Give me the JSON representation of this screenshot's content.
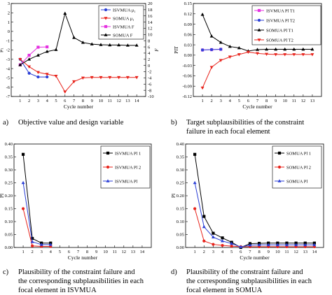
{
  "captions": {
    "a": {
      "tag": "a)",
      "text": "Objective value and design variable"
    },
    "b": {
      "tag": "b)",
      "text": "Target subplausibilities of the constraint\nfailure in each focal element"
    },
    "c": {
      "tag": "c)",
      "text": "Plausibility of the constraint failure and\nthe corresponding subplausibilities in each\nfocal element in ISVMUA"
    },
    "d": {
      "tag": "d)",
      "text": "Plausibility of the constraint failure and\nthe corresponding subplausibilities in each\nfocal element in SOMUA"
    }
  },
  "chart_data": [
    {
      "id": "a",
      "type": "line",
      "xlabel": "Cycle number",
      "ylabel": "μ₁",
      "y2label": "F",
      "xlim": [
        0,
        15
      ],
      "xticks": [
        1,
        2,
        3,
        4,
        5,
        6,
        7,
        8,
        9,
        10,
        11,
        12,
        13,
        14
      ],
      "ylim": [
        -7,
        3
      ],
      "yticks": [
        3,
        2,
        1,
        0,
        -1,
        -2,
        -3,
        -4,
        -5,
        -6,
        -7
      ],
      "y2lim": [
        -10,
        20
      ],
      "y2ticks": [
        20,
        18,
        16,
        14,
        12,
        10,
        8,
        6,
        4,
        2,
        0,
        -2,
        -4,
        -6,
        -8,
        -10
      ],
      "legend_position": "top-right",
      "series": [
        {
          "name": "ISVMUA μ₁",
          "axis": "left",
          "color": "#2b3fd6",
          "marker": "circle",
          "x": [
            1,
            2,
            3,
            4
          ],
          "y": [
            -3.0,
            -4.5,
            -4.9,
            -4.9
          ]
        },
        {
          "name": "SOMUA μ₁",
          "axis": "left",
          "color": "#e8231b",
          "marker": "triangle-down",
          "x": [
            1,
            2,
            3,
            4,
            5,
            6,
            7,
            8,
            9,
            10,
            11,
            12,
            13,
            14
          ],
          "y": [
            -3.0,
            -3.8,
            -4.4,
            -4.6,
            -4.8,
            -6.5,
            -5.4,
            -5.0,
            -4.95,
            -4.95,
            -4.95,
            -4.95,
            -4.95,
            -4.95
          ]
        },
        {
          "name": "ISVMUA F",
          "axis": "right",
          "color": "#e531e0",
          "marker": "square",
          "x": [
            1,
            2,
            3,
            4
          ],
          "y": [
            0.2,
            3.3,
            5.9,
            6.0
          ]
        },
        {
          "name": "SOMUA F",
          "axis": "right",
          "color": "#000000",
          "marker": "triangle-up",
          "x": [
            1,
            2,
            3,
            4,
            5,
            6,
            7,
            8,
            9,
            10,
            11,
            12,
            13,
            14
          ],
          "y": [
            0.2,
            2.0,
            3.3,
            4.5,
            5.1,
            16.8,
            9.0,
            7.4,
            6.9,
            6.7,
            6.6,
            6.6,
            6.5,
            6.5
          ]
        }
      ]
    },
    {
      "id": "b",
      "type": "line",
      "xlabel": "Cycle number",
      "ylabel": "PlT",
      "xlim": [
        0,
        14
      ],
      "xticks": [
        1,
        2,
        3,
        4,
        5,
        6,
        7,
        8,
        9,
        10,
        11,
        12,
        13
      ],
      "ylim": [
        -0.12,
        0.15
      ],
      "yticks": [
        0.15,
        0.12,
        0.09,
        0.06,
        0.03,
        0.0,
        -0.03,
        -0.06,
        -0.09,
        -0.12
      ],
      "legend_position": "top-right",
      "series": [
        {
          "name": "ISVMUA Pl T1",
          "color": "#e531e0",
          "marker": "square",
          "x": [
            1,
            2,
            3
          ],
          "y": [
            0.015,
            0.016,
            0.017
          ]
        },
        {
          "name": "ISVMUA Pl T2",
          "color": "#2b3fd6",
          "marker": "circle",
          "x": [
            1,
            2,
            3
          ],
          "y": [
            0.015,
            0.016,
            0.017
          ]
        },
        {
          "name": "SOMUA Pl T1",
          "color": "#000000",
          "marker": "triangle-up",
          "x": [
            1,
            2,
            3,
            4,
            5,
            6,
            7,
            8,
            9,
            10,
            11,
            12,
            13
          ],
          "y": [
            0.118,
            0.055,
            0.037,
            0.025,
            0.021,
            0.012,
            0.016,
            0.017,
            0.017,
            0.017,
            0.017,
            0.017,
            0.017
          ]
        },
        {
          "name": "SOMUA Pl T2",
          "color": "#e8231b",
          "marker": "triangle-down",
          "x": [
            1,
            2,
            3,
            4,
            5,
            6,
            7,
            8,
            9,
            10,
            11,
            12,
            13
          ],
          "y": [
            -0.095,
            -0.035,
            -0.015,
            -0.005,
            0.002,
            0.009,
            0.005,
            0.003,
            0.002,
            0.002,
            0.002,
            0.002,
            0.002
          ]
        }
      ]
    },
    {
      "id": "c",
      "type": "line",
      "ylabel": "Pl",
      "xlabel": "Cycle number",
      "xlim": [
        0,
        15
      ],
      "xticks": [
        1,
        2,
        3,
        4,
        5,
        6,
        7,
        8,
        9,
        10,
        11,
        12,
        13,
        14
      ],
      "ylim": [
        0,
        0.4
      ],
      "yticks": [
        0.4,
        0.35,
        0.3,
        0.25,
        0.2,
        0.15,
        0.1,
        0.05,
        0.0
      ],
      "legend_position": "top-right",
      "series": [
        {
          "name": "ISVMUA Pl 1",
          "color": "#000000",
          "marker": "square",
          "x": [
            1,
            2,
            3,
            4
          ],
          "y": [
            0.36,
            0.035,
            0.017,
            0.017
          ]
        },
        {
          "name": "ISVMUA Pl 2",
          "color": "#e8231b",
          "marker": "circle",
          "x": [
            1,
            2,
            3,
            4
          ],
          "y": [
            0.15,
            0.006,
            0.004,
            0.004
          ]
        },
        {
          "name": "ISVMUA Pl",
          "color": "#2b3fd6",
          "marker": "triangle-up",
          "x": [
            1,
            2,
            3,
            4
          ],
          "y": [
            0.25,
            0.022,
            0.011,
            0.011
          ]
        }
      ]
    },
    {
      "id": "d",
      "type": "line",
      "ylabel": "Pl",
      "xlabel": "Cycle number",
      "xlim": [
        0,
        15
      ],
      "xticks": [
        1,
        2,
        3,
        4,
        5,
        6,
        7,
        8,
        9,
        10,
        11,
        12,
        13,
        14
      ],
      "ylim": [
        0,
        0.4
      ],
      "yticks": [
        0.4,
        0.35,
        0.3,
        0.25,
        0.2,
        0.15,
        0.1,
        0.05,
        0.0
      ],
      "legend_position": "top-right",
      "series": [
        {
          "name": "SOMUA Pl 1",
          "color": "#000000",
          "marker": "square",
          "x": [
            1,
            2,
            3,
            4,
            5,
            6,
            7,
            8,
            9,
            10,
            11,
            12,
            13,
            14
          ],
          "y": [
            0.36,
            0.12,
            0.055,
            0.037,
            0.02,
            0.0,
            0.015,
            0.016,
            0.017,
            0.017,
            0.017,
            0.017,
            0.017,
            0.017
          ]
        },
        {
          "name": "SOMUA Pl 2",
          "color": "#e8231b",
          "marker": "circle",
          "x": [
            1,
            2,
            3,
            4,
            5,
            6,
            7,
            8,
            9,
            10,
            11,
            12,
            13,
            14
          ],
          "y": [
            0.15,
            0.025,
            0.012,
            0.008,
            0.005,
            0.003,
            0.003,
            0.003,
            0.003,
            0.003,
            0.003,
            0.003,
            0.003,
            0.003
          ]
        },
        {
          "name": "SOMUA Pl",
          "color": "#2b3fd6",
          "marker": "triangle-up",
          "x": [
            1,
            2,
            3,
            4,
            5,
            6,
            7,
            8,
            9,
            10,
            11,
            12,
            13,
            14
          ],
          "y": [
            0.25,
            0.08,
            0.04,
            0.025,
            0.015,
            0.002,
            0.009,
            0.01,
            0.01,
            0.01,
            0.01,
            0.01,
            0.01,
            0.01
          ]
        }
      ]
    }
  ]
}
